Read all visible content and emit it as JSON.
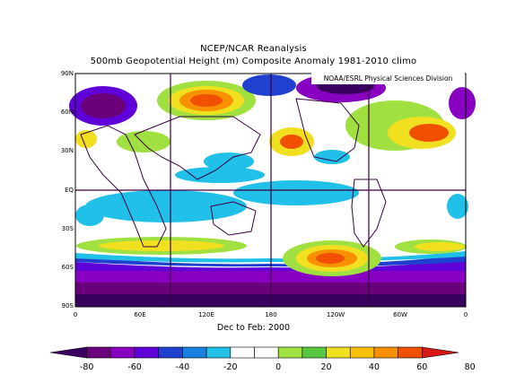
{
  "title_line1": "NCEP/NCAR Reanalysis",
  "title_line2": "500mb Geopotential Height (m) Composite Anomaly 1981-2010 climo",
  "credit": "NOAA/ESRL Physical Sciences Division",
  "period": "Dec to Feb: 2000",
  "lat_labels": [
    "90N",
    "60N",
    "30N",
    "EQ",
    "30S",
    "60S",
    "90S"
  ],
  "lon_labels": [
    "0",
    "60E",
    "120E",
    "180",
    "120W",
    "60W",
    "0"
  ],
  "colorbar": {
    "labels": [
      "-80",
      "-60",
      "-40",
      "-20",
      "0",
      "20",
      "40",
      "60",
      "80"
    ],
    "colors": [
      "#3a0060",
      "#6a007a",
      "#8800c0",
      "#6000d8",
      "#2040d0",
      "#1a80e0",
      "#20c0e8",
      "#ffffff",
      "#ffffff",
      "#a0e040",
      "#58c840",
      "#f0e020",
      "#f8c000",
      "#f89000",
      "#f05000",
      "#d81818"
    ]
  }
}
